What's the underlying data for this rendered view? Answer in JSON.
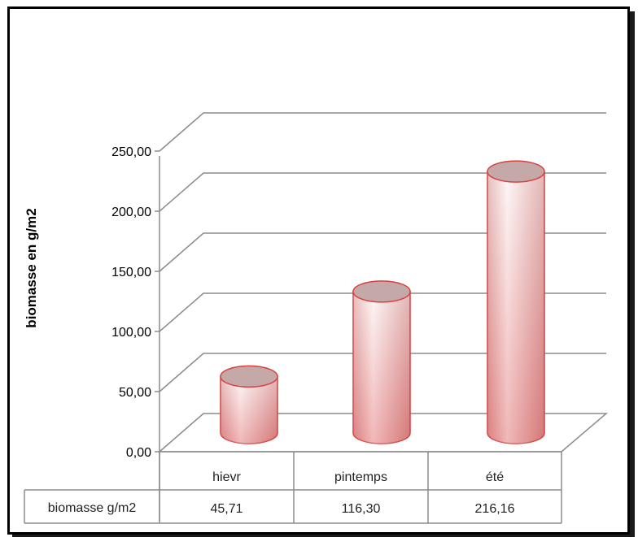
{
  "chart_data": {
    "type": "bar",
    "style": "3d-cylinder",
    "categories": [
      "hievr",
      "pintemps",
      "été"
    ],
    "series": [
      {
        "name": "biomasse g/m2",
        "values": [
          45.71,
          116.3,
          216.16
        ],
        "color": "#e8a0a0"
      }
    ],
    "value_labels": [
      "45,71",
      "116,30",
      "216,16"
    ],
    "ylabel": "biomasse en g/m2",
    "ylim": [
      0,
      250
    ],
    "yticks": [
      0,
      50,
      100,
      150,
      200,
      250
    ],
    "ytick_labels": [
      "0,00",
      "50,00",
      "100,00",
      "150,00",
      "200,00",
      "250,00"
    ],
    "grid": true,
    "data_table": true
  },
  "colors": {
    "bar_top": "#c5a9a9",
    "bar_edge": "#d94040",
    "grid": "#8c8c8c"
  }
}
